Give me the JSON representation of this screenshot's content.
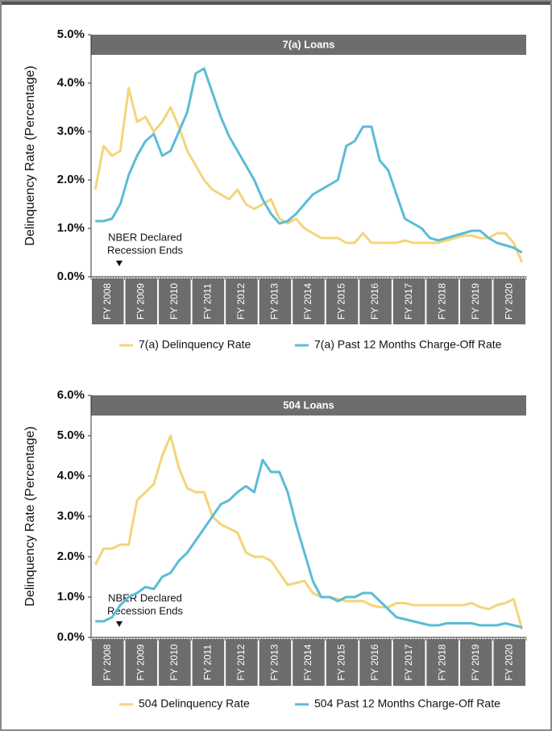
{
  "chart_data": [
    {
      "type": "line",
      "title": "7(a) Loans",
      "ylabel": "Delinquency Rate (Percentage)",
      "annotation": [
        "NBER Declared",
        "Recession Ends"
      ],
      "categories": [
        "FY 2008",
        null,
        null,
        null,
        "FY 2009",
        null,
        null,
        null,
        "FY 2010",
        null,
        null,
        null,
        "FY 2011",
        null,
        null,
        null,
        "FY 2012",
        null,
        null,
        null,
        "FY 2013",
        null,
        null,
        null,
        "FY 2014",
        null,
        null,
        null,
        "FY 2015",
        null,
        null,
        null,
        "FY 2016",
        null,
        null,
        null,
        "FY 2017",
        null,
        null,
        null,
        "FY 2018",
        null,
        null,
        null,
        "FY 2019",
        null,
        null,
        null,
        "FY 2020",
        null,
        null,
        null
      ],
      "ylim": [
        0,
        5
      ],
      "yticks": [
        {
          "value": 0,
          "label": "0.0%"
        },
        {
          "value": 1,
          "label": "1.0%"
        },
        {
          "value": 2,
          "label": "2.0%"
        },
        {
          "value": 3,
          "label": "3.0%"
        },
        {
          "value": 4,
          "label": "4.0%"
        },
        {
          "value": 5,
          "label": "5.0%"
        }
      ],
      "legend": "bottom",
      "series": [
        {
          "name": "7(a) Delinquency Rate",
          "color": "#f3d57a",
          "values": [
            1.8,
            2.7,
            2.5,
            2.6,
            3.9,
            3.2,
            3.3,
            3.0,
            3.2,
            3.5,
            3.1,
            2.6,
            2.3,
            2.0,
            1.8,
            1.7,
            1.6,
            1.8,
            1.5,
            1.4,
            1.5,
            1.6,
            1.2,
            1.1,
            1.2,
            1.0,
            0.9,
            0.8,
            0.8,
            0.8,
            0.7,
            0.7,
            0.9,
            0.7,
            0.7,
            0.7,
            0.7,
            0.75,
            0.7,
            0.7,
            0.7,
            0.7,
            0.75,
            0.8,
            0.85,
            0.85,
            0.8,
            0.8,
            0.9,
            0.9,
            0.7,
            0.3
          ]
        },
        {
          "name": "7(a) Past 12 Months Charge-Off Rate",
          "color": "#5bbcd6",
          "values": [
            1.15,
            1.15,
            1.2,
            1.5,
            2.1,
            2.5,
            2.8,
            2.95,
            2.5,
            2.6,
            3.0,
            3.4,
            4.2,
            4.3,
            3.8,
            3.3,
            2.9,
            2.6,
            2.3,
            2.0,
            1.6,
            1.3,
            1.1,
            1.15,
            1.3,
            1.5,
            1.7,
            1.8,
            1.9,
            2.0,
            2.7,
            2.8,
            3.1,
            3.1,
            2.4,
            2.2,
            1.7,
            1.2,
            1.1,
            1.0,
            0.8,
            0.75,
            0.8,
            0.85,
            0.9,
            0.95,
            0.95,
            0.8,
            0.7,
            0.65,
            0.6,
            0.5
          ]
        }
      ]
    },
    {
      "type": "line",
      "title": "504 Loans",
      "ylabel": "Delinquency Rate (Percentage)",
      "annotation": [
        "NBER Declared",
        "Recession Ends"
      ],
      "categories": [
        "FY 2008",
        null,
        null,
        null,
        "FY 2009",
        null,
        null,
        null,
        "FY 2010",
        null,
        null,
        null,
        "FY 2011",
        null,
        null,
        null,
        "FY 2012",
        null,
        null,
        null,
        "FY 2013",
        null,
        null,
        null,
        "FY 2014",
        null,
        null,
        null,
        "FY 2015",
        null,
        null,
        null,
        "FY 2016",
        null,
        null,
        null,
        "FY 2017",
        null,
        null,
        null,
        "FY 2018",
        null,
        null,
        null,
        "FY 2019",
        null,
        null,
        null,
        "FY 2020",
        null,
        null,
        null
      ],
      "ylim": [
        0,
        6
      ],
      "yticks": [
        {
          "value": 0,
          "label": "0.0%"
        },
        {
          "value": 1,
          "label": "1.0%"
        },
        {
          "value": 2,
          "label": "2.0%"
        },
        {
          "value": 3,
          "label": "3.0%"
        },
        {
          "value": 4,
          "label": "4.0%"
        },
        {
          "value": 5,
          "label": "5.0%"
        },
        {
          "value": 6,
          "label": "6.0%"
        }
      ],
      "legend": "bottom",
      "series": [
        {
          "name": "504 Delinquency Rate",
          "color": "#f3d57a",
          "values": [
            1.8,
            2.2,
            2.2,
            2.3,
            2.3,
            3.4,
            3.6,
            3.8,
            4.5,
            5.0,
            4.2,
            3.7,
            3.6,
            3.6,
            3.0,
            2.8,
            2.7,
            2.6,
            2.1,
            2.0,
            2.0,
            1.9,
            1.6,
            1.3,
            1.35,
            1.4,
            1.1,
            1.0,
            1.0,
            0.95,
            0.9,
            0.9,
            0.9,
            0.8,
            0.75,
            0.75,
            0.85,
            0.85,
            0.8,
            0.8,
            0.8,
            0.8,
            0.8,
            0.8,
            0.8,
            0.85,
            0.75,
            0.7,
            0.8,
            0.85,
            0.95,
            0.2
          ]
        },
        {
          "name": "504 Past 12 Months Charge-Off Rate",
          "color": "#5bbcd6",
          "values": [
            0.4,
            0.4,
            0.5,
            0.8,
            1.0,
            1.1,
            1.25,
            1.2,
            1.5,
            1.6,
            1.9,
            2.1,
            2.4,
            2.7,
            3.0,
            3.3,
            3.4,
            3.6,
            3.75,
            3.6,
            4.4,
            4.1,
            4.1,
            3.6,
            2.8,
            2.1,
            1.4,
            1.0,
            1.0,
            0.9,
            1.0,
            1.0,
            1.1,
            1.1,
            0.9,
            0.7,
            0.5,
            0.45,
            0.4,
            0.35,
            0.3,
            0.3,
            0.35,
            0.35,
            0.35,
            0.35,
            0.3,
            0.3,
            0.3,
            0.35,
            0.3,
            0.25
          ]
        }
      ]
    }
  ]
}
